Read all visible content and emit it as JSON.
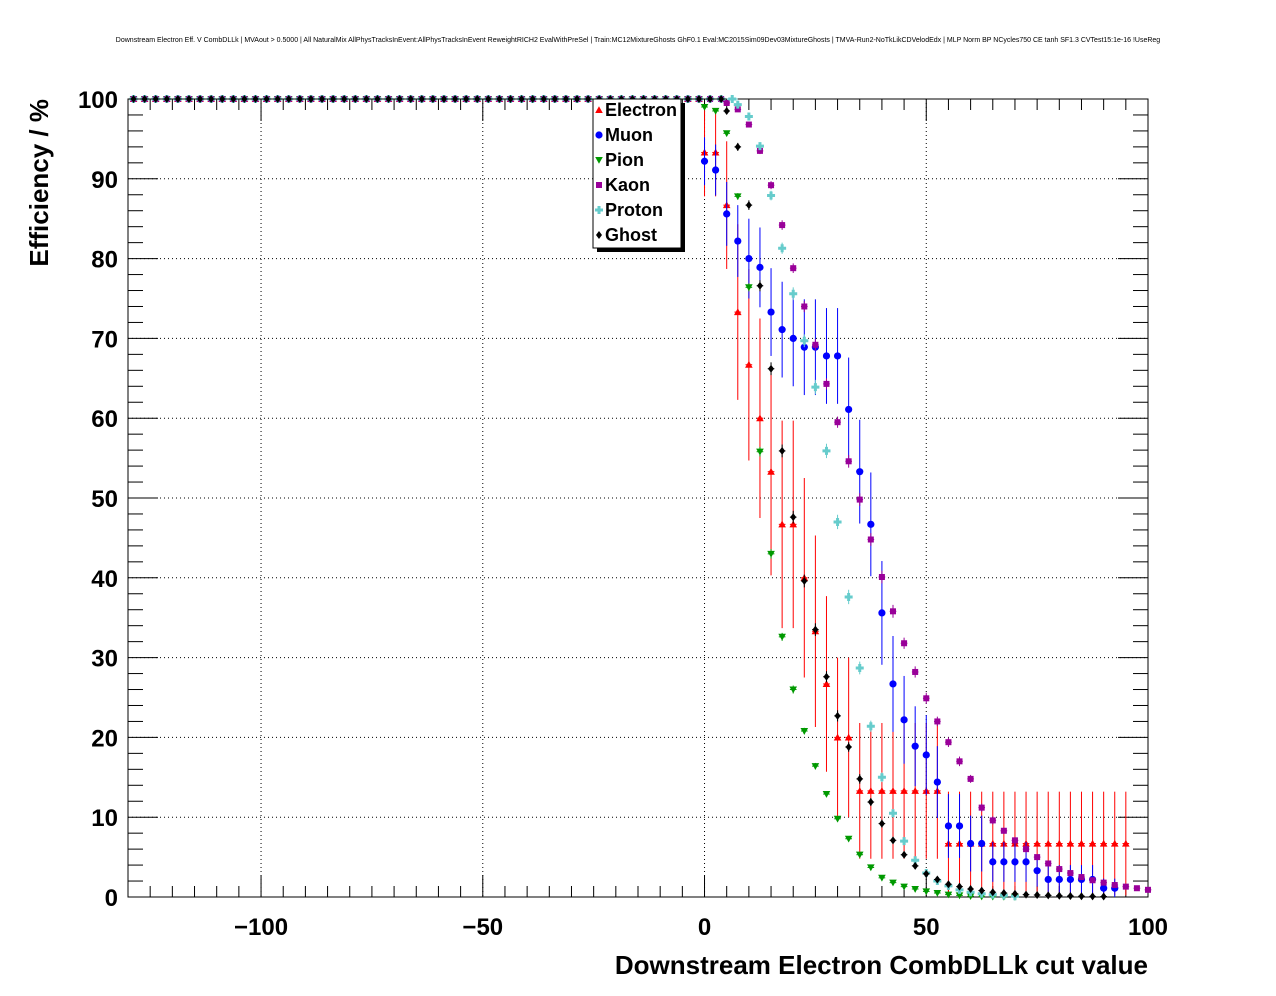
{
  "chart_data": {
    "type": "scatter",
    "title": "Downstream Electron Eff. V CombDLLk | MVAout > 0.5000 | All NaturalMix AllPhysTracksInEvent:AllPhysTracksInEvent ReweightRICH2 EvalWithPreSel | Train:MC12MixtureGhosts GhF0.1 Eval:MC2015Sim09Dev03MixtureGhosts | TMVA-Run2-NoTkLikCDVelodEdx | MLP Norm BP NCycles750 CE tanh SF1.3 CVTest15:1e-16 !UseReg",
    "xlabel": "Downstream Electron CombDLLk cut value",
    "ylabel": "Efficiency / %",
    "xlim": [
      -130,
      100
    ],
    "ylim": [
      0,
      100
    ],
    "grid": true,
    "legend_position": "top-center",
    "xticks": [
      -100,
      -50,
      0,
      50,
      100
    ],
    "xtick_labels": [
      "−100",
      "−50",
      "0",
      "50",
      "100"
    ],
    "yticks": [
      0,
      10,
      20,
      30,
      40,
      50,
      60,
      70,
      80,
      90,
      100
    ],
    "ytick_labels": [
      "0",
      "10",
      "20",
      "30",
      "40",
      "50",
      "60",
      "70",
      "80",
      "90",
      "100"
    ],
    "bin_width": 2.5,
    "series": [
      {
        "name": "Electron",
        "color": "#ff0000",
        "marker": "triangle-up",
        "points": [
          [
            0,
            93.3,
            5.5
          ],
          [
            2.5,
            93.3,
            5.5
          ],
          [
            5,
            86.7,
            8
          ],
          [
            7.5,
            73.3,
            11
          ],
          [
            10,
            66.7,
            12
          ],
          [
            12.5,
            60,
            12.5
          ],
          [
            15,
            53.3,
            13
          ],
          [
            17.5,
            46.7,
            13
          ],
          [
            20,
            46.7,
            13
          ],
          [
            22.5,
            40,
            12.5
          ],
          [
            25,
            33.3,
            12
          ],
          [
            27.5,
            26.7,
            11
          ],
          [
            30,
            20,
            10
          ],
          [
            32.5,
            20,
            10
          ],
          [
            35,
            13.3,
            8.5
          ],
          [
            37.5,
            13.3,
            8.5
          ],
          [
            40,
            13.3,
            8.5
          ],
          [
            42.5,
            13.3,
            8.5
          ],
          [
            45,
            13.3,
            8.5
          ],
          [
            47.5,
            13.3,
            8.5
          ],
          [
            50,
            13.3,
            8.5
          ],
          [
            52.5,
            13.3,
            8.5
          ],
          [
            55,
            6.7,
            6.5
          ],
          [
            57.5,
            6.7,
            6.5
          ],
          [
            60,
            6.7,
            6.5
          ],
          [
            62.5,
            6.7,
            6.5
          ],
          [
            65,
            6.7,
            6.5
          ],
          [
            67.5,
            6.7,
            6.5
          ],
          [
            70,
            6.7,
            6.5
          ],
          [
            72.5,
            6.7,
            6.5
          ],
          [
            75,
            6.7,
            6.5
          ],
          [
            77.5,
            6.7,
            6.5
          ],
          [
            80,
            6.7,
            6.5
          ],
          [
            82.5,
            6.7,
            6.5
          ],
          [
            85,
            6.7,
            6.5
          ],
          [
            87.5,
            6.7,
            6.5
          ],
          [
            90,
            6.7,
            6.5
          ],
          [
            92.5,
            6.7,
            6.5
          ],
          [
            95,
            6.7,
            6.5
          ]
        ]
      },
      {
        "name": "Muon",
        "color": "#0000ff",
        "marker": "circle",
        "points": [
          [
            0,
            92.2,
            3
          ],
          [
            2.5,
            91.1,
            3.2
          ],
          [
            5,
            85.6,
            4
          ],
          [
            7.5,
            82.2,
            4.5
          ],
          [
            10,
            80,
            5
          ],
          [
            12.5,
            78.9,
            5
          ],
          [
            15,
            73.3,
            5.5
          ],
          [
            17.5,
            71.1,
            6
          ],
          [
            20,
            70,
            6
          ],
          [
            22.5,
            68.9,
            6
          ],
          [
            25,
            68.9,
            6
          ],
          [
            27.5,
            67.8,
            6
          ],
          [
            30,
            67.8,
            6
          ],
          [
            32.5,
            61.1,
            6.5
          ],
          [
            35,
            53.3,
            6.5
          ],
          [
            37.5,
            46.7,
            6.5
          ],
          [
            40,
            35.6,
            6.5
          ],
          [
            42.5,
            26.7,
            6
          ],
          [
            45,
            22.2,
            5.5
          ],
          [
            47.5,
            18.9,
            5
          ],
          [
            50,
            17.8,
            5
          ],
          [
            52.5,
            14.4,
            4.5
          ],
          [
            55,
            8.9,
            4
          ],
          [
            57.5,
            8.9,
            4
          ],
          [
            60,
            6.7,
            3.5
          ],
          [
            62.5,
            6.7,
            3.5
          ],
          [
            65,
            4.4,
            2.5
          ],
          [
            67.5,
            4.4,
            2.5
          ],
          [
            70,
            4.4,
            2.5
          ],
          [
            72.5,
            4.4,
            2.5
          ],
          [
            75,
            3.3,
            2
          ],
          [
            77.5,
            2.2,
            1.8
          ],
          [
            80,
            2.2,
            1.8
          ],
          [
            82.5,
            2.2,
            1.8
          ],
          [
            85,
            2.2,
            1.8
          ],
          [
            87.5,
            2.2,
            1.8
          ],
          [
            90,
            1.1,
            1.2
          ],
          [
            92.5,
            1.1,
            1.2
          ]
        ]
      },
      {
        "name": "Pion",
        "color": "#009900",
        "marker": "triangle-down",
        "points": [
          [
            0,
            99,
            0.2
          ],
          [
            2.5,
            98.5,
            0.2
          ],
          [
            5,
            95.7,
            0.3
          ],
          [
            7.5,
            87.8,
            0.4
          ],
          [
            10,
            76.4,
            0.5
          ],
          [
            12.5,
            55.8,
            0.6
          ],
          [
            15,
            43,
            0.6
          ],
          [
            17.5,
            32.6,
            0.5
          ],
          [
            20,
            26,
            0.5
          ],
          [
            22.5,
            20.8,
            0.4
          ],
          [
            25,
            16.4,
            0.4
          ],
          [
            27.5,
            12.9,
            0.3
          ],
          [
            30,
            9.8,
            0.3
          ],
          [
            32.5,
            7.3,
            0.3
          ],
          [
            35,
            5.3,
            0.2
          ],
          [
            37.5,
            3.7,
            0.2
          ],
          [
            40,
            2.4,
            0.2
          ],
          [
            42.5,
            1.8,
            0.1
          ],
          [
            45,
            1.3,
            0.1
          ],
          [
            47.5,
            1,
            0.1
          ],
          [
            50,
            0.7,
            0.1
          ],
          [
            52.5,
            0.5,
            0.1
          ],
          [
            55,
            0.3,
            0.1
          ],
          [
            57.5,
            0.2,
            0.1
          ],
          [
            60,
            0.1,
            0.1
          ],
          [
            62.5,
            0.05,
            0.05
          ],
          [
            65,
            0.03,
            0.03
          ],
          [
            67.5,
            0.02,
            0.02
          ],
          [
            70,
            0.01,
            0.01
          ]
        ]
      },
      {
        "name": "Kaon",
        "color": "#990099",
        "marker": "square",
        "points": [
          [
            5,
            99.5,
            0.2
          ],
          [
            7.5,
            98.7,
            0.2
          ],
          [
            10,
            96.8,
            0.3
          ],
          [
            12.5,
            93.5,
            0.4
          ],
          [
            15,
            89.2,
            0.5
          ],
          [
            17.5,
            84.2,
            0.6
          ],
          [
            20,
            78.8,
            0.6
          ],
          [
            22.5,
            74,
            0.7
          ],
          [
            25,
            69.2,
            0.7
          ],
          [
            27.5,
            64.3,
            0.7
          ],
          [
            30,
            59.5,
            0.7
          ],
          [
            32.5,
            54.6,
            0.8
          ],
          [
            35,
            49.8,
            0.8
          ],
          [
            37.5,
            44.8,
            0.8
          ],
          [
            40,
            40.1,
            0.8
          ],
          [
            42.5,
            35.8,
            0.8
          ],
          [
            45,
            31.8,
            0.7
          ],
          [
            47.5,
            28.2,
            0.7
          ],
          [
            50,
            24.9,
            0.7
          ],
          [
            52.5,
            22,
            0.6
          ],
          [
            55,
            19.4,
            0.6
          ],
          [
            57.5,
            17,
            0.6
          ],
          [
            60,
            14.8,
            0.5
          ],
          [
            62.5,
            11.2,
            0.5
          ],
          [
            65,
            9.6,
            0.5
          ],
          [
            67.5,
            8.3,
            0.4
          ],
          [
            70,
            7.1,
            0.4
          ],
          [
            72.5,
            6,
            0.4
          ],
          [
            75,
            5,
            0.3
          ],
          [
            77.5,
            4.2,
            0.3
          ],
          [
            80,
            3.5,
            0.3
          ],
          [
            82.5,
            3,
            0.3
          ],
          [
            85,
            2.5,
            0.2
          ],
          [
            87.5,
            2.1,
            0.2
          ],
          [
            90,
            1.8,
            0.2
          ],
          [
            92.5,
            1.5,
            0.2
          ],
          [
            95,
            1.3,
            0.2
          ],
          [
            97.5,
            1.1,
            0.2
          ],
          [
            100,
            0.9,
            0.2
          ]
        ]
      },
      {
        "name": "Proton",
        "color": "#66cccc",
        "marker": "cross",
        "points": [
          [
            7.5,
            99.3,
            0.2
          ],
          [
            10,
            97.8,
            0.3
          ],
          [
            12.5,
            94.1,
            0.4
          ],
          [
            15,
            87.9,
            0.6
          ],
          [
            17.5,
            81.3,
            0.7
          ],
          [
            20,
            75.6,
            0.8
          ],
          [
            22.5,
            69.7,
            0.8
          ],
          [
            25,
            63.9,
            0.9
          ],
          [
            27.5,
            55.9,
            0.9
          ],
          [
            30,
            47,
            0.9
          ],
          [
            32.5,
            37.6,
            0.9
          ],
          [
            35,
            28.7,
            0.8
          ],
          [
            37.5,
            21.4,
            0.7
          ],
          [
            40,
            15,
            0.6
          ],
          [
            42.5,
            10.5,
            0.5
          ],
          [
            45,
            7,
            0.4
          ],
          [
            47.5,
            4.6,
            0.4
          ],
          [
            50,
            3,
            0.3
          ],
          [
            52.5,
            2,
            0.3
          ],
          [
            55,
            1.4,
            0.2
          ],
          [
            57.5,
            0.9,
            0.2
          ],
          [
            60,
            0.6,
            0.1
          ],
          [
            62.5,
            0.4,
            0.1
          ],
          [
            65,
            0.3,
            0.1
          ],
          [
            67.5,
            0.2,
            0.1
          ],
          [
            70,
            0.1,
            0.1
          ]
        ]
      },
      {
        "name": "Ghost",
        "color": "#000000",
        "marker": "diamond",
        "points": [
          [
            5,
            98.5,
            0.3
          ],
          [
            7.5,
            94,
            0.5
          ],
          [
            10,
            86.7,
            0.6
          ],
          [
            12.5,
            76.6,
            0.7
          ],
          [
            15,
            66.2,
            0.8
          ],
          [
            17.5,
            55.9,
            0.8
          ],
          [
            20,
            47.6,
            0.8
          ],
          [
            22.5,
            39.6,
            0.8
          ],
          [
            25,
            33.5,
            0.8
          ],
          [
            27.5,
            27.6,
            0.7
          ],
          [
            30,
            22.7,
            0.7
          ],
          [
            32.5,
            18.8,
            0.6
          ],
          [
            35,
            14.8,
            0.6
          ],
          [
            37.5,
            11.9,
            0.5
          ],
          [
            40,
            9.2,
            0.5
          ],
          [
            42.5,
            7.1,
            0.4
          ],
          [
            45,
            5.3,
            0.4
          ],
          [
            47.5,
            3.9,
            0.3
          ],
          [
            50,
            2.9,
            0.3
          ],
          [
            52.5,
            2.2,
            0.2
          ],
          [
            55,
            1.6,
            0.2
          ],
          [
            57.5,
            1.3,
            0.2
          ],
          [
            60,
            1,
            0.2
          ],
          [
            62.5,
            0.8,
            0.1
          ],
          [
            65,
            0.6,
            0.1
          ],
          [
            67.5,
            0.5,
            0.1
          ],
          [
            70,
            0.4,
            0.1
          ],
          [
            72.5,
            0.3,
            0.1
          ],
          [
            75,
            0.25,
            0.1
          ],
          [
            77.5,
            0.2,
            0.1
          ],
          [
            80,
            0.15,
            0.1
          ],
          [
            82.5,
            0.12,
            0.1
          ],
          [
            85,
            0.1,
            0.1
          ],
          [
            87.5,
            0.08,
            0.05
          ],
          [
            90,
            0.06,
            0.05
          ]
        ]
      }
    ]
  }
}
